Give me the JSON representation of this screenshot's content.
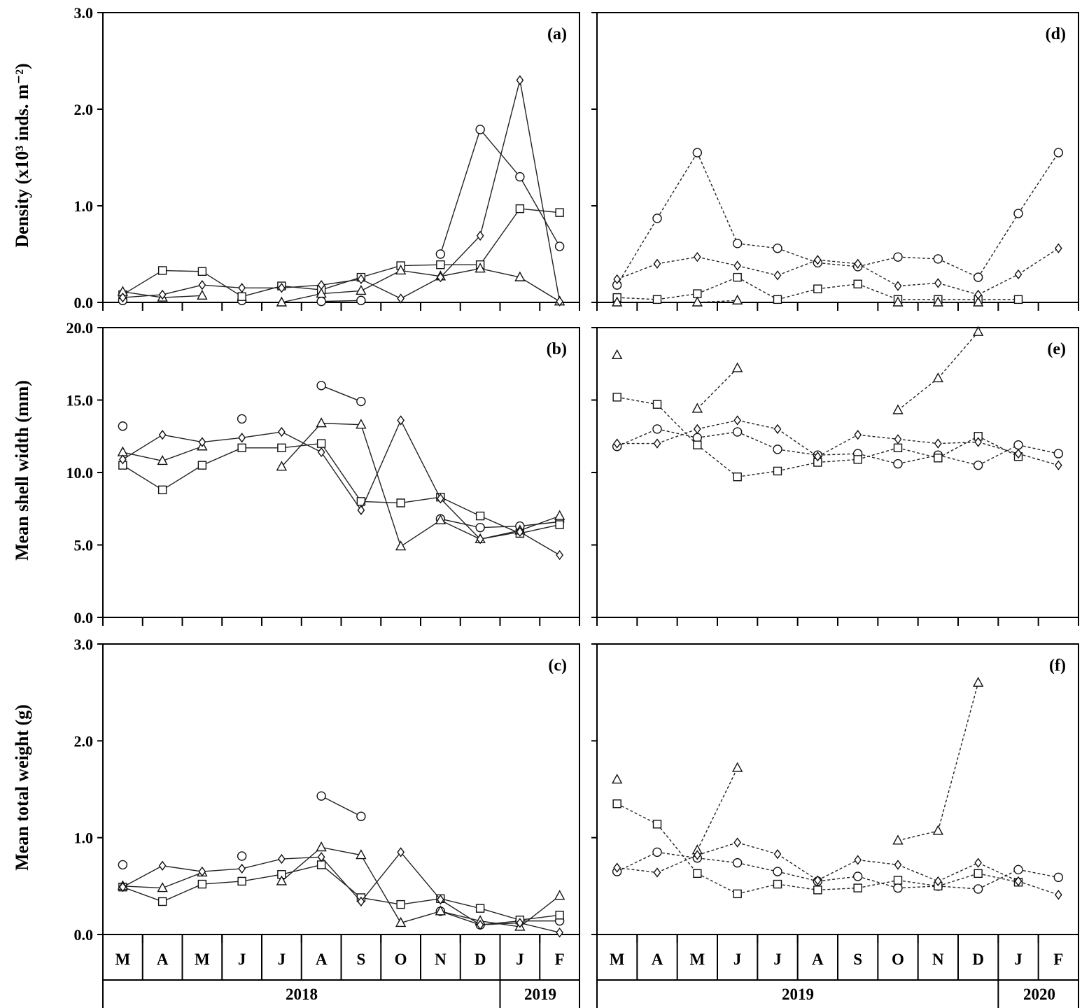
{
  "figure": {
    "y_axis_labels": [
      "Density (x10³ inds. m⁻²)",
      "Mean shell width (mm)",
      "Mean total weight (g)"
    ],
    "months_left": [
      "M",
      "A",
      "M",
      "J",
      "J",
      "A",
      "S",
      "O",
      "N",
      "D",
      "J",
      "F"
    ],
    "months_right": [
      "M",
      "A",
      "M",
      "J",
      "J",
      "A",
      "S",
      "O",
      "N",
      "D",
      "J",
      "F"
    ],
    "years_left": [
      "2018",
      "2019"
    ],
    "years_right": [
      "2019",
      "2020"
    ]
  },
  "chart_data": [
    {
      "panel": "(a)",
      "type": "line",
      "line_style": "solid",
      "ylim": [
        0,
        3
      ],
      "yticks": [
        "0.0",
        "1.0",
        "2.0",
        "3.0"
      ],
      "categories": [
        "M",
        "A",
        "M",
        "J",
        "J",
        "A",
        "S",
        "O",
        "N",
        "D",
        "J",
        "F"
      ],
      "series": [
        {
          "marker": "circle",
          "values": [
            0.02,
            null,
            null,
            0.02,
            null,
            0.01,
            0.02,
            null,
            0.5,
            1.79,
            1.3,
            0.58
          ]
        },
        {
          "marker": "square",
          "values": [
            0.08,
            0.33,
            0.32,
            0.06,
            0.17,
            0.13,
            0.26,
            0.38,
            0.39,
            0.39,
            0.97,
            0.93
          ]
        },
        {
          "marker": "triangle",
          "values": [
            0.11,
            0.05,
            0.07,
            null,
            0.0,
            0.09,
            0.12,
            0.33,
            0.27,
            0.35,
            0.26,
            0.01
          ]
        },
        {
          "marker": "diamond",
          "values": [
            0.05,
            0.08,
            0.18,
            0.15,
            0.15,
            0.18,
            0.24,
            0.04,
            0.26,
            0.69,
            2.3,
            0.01
          ]
        }
      ]
    },
    {
      "panel": "(b)",
      "type": "line",
      "line_style": "solid",
      "ylim": [
        0,
        20
      ],
      "yticks": [
        "0.0",
        "5.0",
        "10.0",
        "15.0",
        "20.0"
      ],
      "categories": [
        "M",
        "A",
        "M",
        "J",
        "J",
        "A",
        "S",
        "O",
        "N",
        "D",
        "J",
        "F"
      ],
      "series": [
        {
          "marker": "circle",
          "values": [
            13.2,
            null,
            null,
            13.7,
            null,
            16.0,
            14.9,
            null,
            6.8,
            6.2,
            6.3,
            6.6
          ]
        },
        {
          "marker": "square",
          "values": [
            10.5,
            8.8,
            10.5,
            11.7,
            11.7,
            12.0,
            8.0,
            7.9,
            8.3,
            7.0,
            5.8,
            6.4
          ]
        },
        {
          "marker": "triangle",
          "values": [
            11.4,
            10.8,
            11.8,
            null,
            10.4,
            13.4,
            13.3,
            4.9,
            6.7,
            5.4,
            6.0,
            7.0
          ]
        },
        {
          "marker": "diamond",
          "values": [
            10.9,
            12.6,
            12.1,
            12.4,
            12.8,
            11.4,
            7.4,
            13.6,
            8.2,
            5.4,
            5.9,
            4.3
          ]
        }
      ]
    },
    {
      "panel": "(c)",
      "type": "line",
      "line_style": "solid",
      "ylim": [
        0,
        3
      ],
      "yticks": [
        "0.0",
        "1.0",
        "2.0",
        "3.0"
      ],
      "categories": [
        "M",
        "A",
        "M",
        "J",
        "J",
        "A",
        "S",
        "O",
        "N",
        "D",
        "J",
        "F"
      ],
      "series": [
        {
          "marker": "circle",
          "values": [
            0.72,
            null,
            null,
            0.81,
            null,
            1.43,
            1.22,
            null,
            0.24,
            0.1,
            0.14,
            0.14
          ]
        },
        {
          "marker": "square",
          "values": [
            0.49,
            0.34,
            0.52,
            0.55,
            0.62,
            0.72,
            0.38,
            0.31,
            0.37,
            0.27,
            0.15,
            0.2
          ]
        },
        {
          "marker": "triangle",
          "values": [
            0.5,
            0.48,
            0.64,
            null,
            0.55,
            0.9,
            0.82,
            0.12,
            0.24,
            0.14,
            0.08,
            0.4
          ]
        },
        {
          "marker": "diamond",
          "values": [
            0.49,
            0.71,
            0.65,
            0.68,
            0.78,
            0.8,
            0.34,
            0.85,
            0.36,
            0.1,
            0.12,
            0.02
          ]
        }
      ]
    },
    {
      "panel": "(d)",
      "type": "line",
      "line_style": "dashed",
      "ylim": [
        0,
        3
      ],
      "categories": [
        "M",
        "A",
        "M",
        "J",
        "J",
        "A",
        "S",
        "O",
        "N",
        "D",
        "J",
        "F"
      ],
      "series": [
        {
          "marker": "circle",
          "values": [
            0.18,
            0.87,
            1.55,
            0.61,
            0.56,
            0.41,
            0.37,
            0.47,
            0.45,
            0.26,
            0.92,
            1.55
          ]
        },
        {
          "marker": "square",
          "values": [
            0.05,
            0.03,
            0.09,
            0.26,
            0.03,
            0.14,
            0.19,
            0.03,
            0.03,
            0.03,
            0.03,
            null
          ]
        },
        {
          "marker": "triangle",
          "values": [
            0.0,
            null,
            0.0,
            0.02,
            null,
            null,
            null,
            0.0,
            0.0,
            0.0,
            null,
            null
          ]
        },
        {
          "marker": "diamond",
          "values": [
            0.24,
            0.4,
            0.47,
            0.38,
            0.28,
            0.44,
            0.4,
            0.17,
            0.2,
            0.08,
            0.29,
            0.56
          ]
        }
      ]
    },
    {
      "panel": "(e)",
      "type": "line",
      "line_style": "dashed",
      "ylim": [
        0,
        20
      ],
      "categories": [
        "M",
        "A",
        "M",
        "J",
        "J",
        "A",
        "S",
        "O",
        "N",
        "D",
        "J",
        "F"
      ],
      "series": [
        {
          "marker": "circle",
          "values": [
            11.8,
            13.0,
            12.4,
            12.8,
            11.6,
            11.2,
            11.3,
            10.6,
            11.2,
            10.5,
            11.9,
            11.3
          ]
        },
        {
          "marker": "square",
          "values": [
            15.2,
            14.7,
            11.9,
            9.7,
            10.1,
            10.7,
            10.9,
            11.7,
            11.0,
            12.5,
            11.1,
            null
          ]
        },
        {
          "marker": "triangle",
          "values": [
            18.1,
            null,
            14.4,
            17.2,
            null,
            null,
            null,
            14.3,
            16.5,
            19.7,
            null,
            null
          ]
        },
        {
          "marker": "diamond",
          "values": [
            12.0,
            12.0,
            13.0,
            13.6,
            13.0,
            11.1,
            12.6,
            12.3,
            12.0,
            12.1,
            11.3,
            10.5
          ]
        }
      ]
    },
    {
      "panel": "(f)",
      "type": "line",
      "line_style": "dashed",
      "ylim": [
        0,
        3
      ],
      "categories": [
        "M",
        "A",
        "M",
        "J",
        "J",
        "A",
        "S",
        "O",
        "N",
        "D",
        "J",
        "F"
      ],
      "series": [
        {
          "marker": "circle",
          "values": [
            0.65,
            0.85,
            0.79,
            0.74,
            0.65,
            0.55,
            0.6,
            0.48,
            0.5,
            0.47,
            0.67,
            0.59
          ]
        },
        {
          "marker": "square",
          "values": [
            1.35,
            1.14,
            0.63,
            0.42,
            0.52,
            0.46,
            0.48,
            0.56,
            0.5,
            0.63,
            0.54,
            null
          ]
        },
        {
          "marker": "triangle",
          "values": [
            1.6,
            null,
            0.87,
            1.72,
            null,
            null,
            null,
            0.97,
            1.07,
            2.6,
            null,
            null
          ]
        },
        {
          "marker": "diamond",
          "values": [
            0.69,
            0.64,
            0.82,
            0.95,
            0.83,
            0.56,
            0.77,
            0.72,
            0.55,
            0.74,
            0.55,
            0.41
          ]
        }
      ]
    }
  ]
}
